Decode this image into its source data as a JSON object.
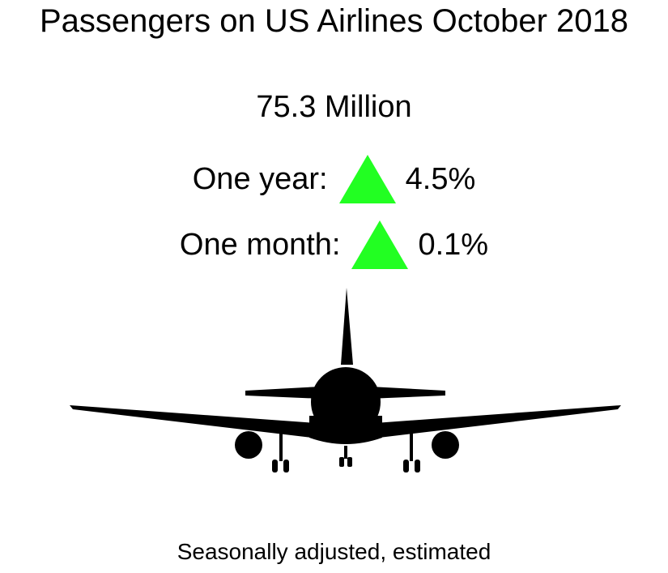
{
  "title": "Passengers on US Airlines October 2018",
  "total": "75.3 Million",
  "changes": {
    "year": {
      "label": "One year:",
      "direction": "up",
      "value": "4.5%"
    },
    "month": {
      "label": "One month:",
      "direction": "up",
      "value": "0.1%"
    }
  },
  "footnote": "Seasonally adjusted, estimated",
  "colors": {
    "increase_indicator": "#22ff22",
    "text": "#000000",
    "background": "#ffffff"
  },
  "icons": {
    "up": "up-triangle-icon",
    "airplane": "airplane-icon"
  }
}
